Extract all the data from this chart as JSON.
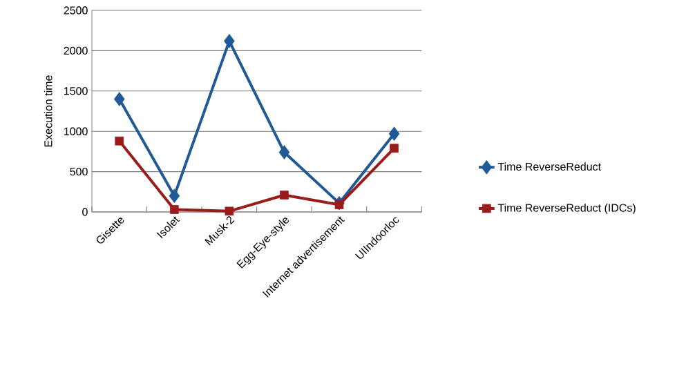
{
  "chart_data": {
    "type": "line",
    "ylabel": "Execution time",
    "categories": [
      "Gisette",
      "Isolet",
      "Musk-2",
      "Egg-Eye-style",
      "Internet advertisement",
      "UIIndoorloc"
    ],
    "series": [
      {
        "name": "Time ReverseReduct",
        "color": "#1f5a96",
        "marker": "diamond",
        "values": [
          1400,
          200,
          2120,
          740,
          110,
          970
        ]
      },
      {
        "name": "Time ReverseReduct (IDCs)",
        "color": "#9b1b1b",
        "marker": "square",
        "values": [
          880,
          30,
          10,
          210,
          90,
          790
        ]
      }
    ],
    "ylim": [
      0,
      2500
    ],
    "yticks": [
      0,
      500,
      1000,
      1500,
      2000,
      2500
    ],
    "grid": "y",
    "legend": "right"
  }
}
